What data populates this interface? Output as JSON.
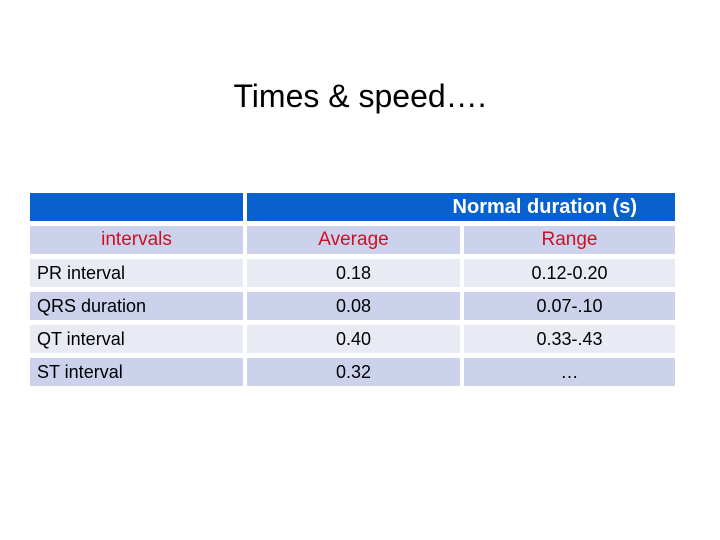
{
  "slide": {
    "title": "Times & speed…."
  },
  "table": {
    "merged_header": "Normal duration (s)",
    "columns": [
      "intervals",
      "Average",
      "Range"
    ],
    "rows": [
      {
        "label": "PR interval",
        "average": "0.18",
        "range": "0.12-0.20"
      },
      {
        "label": "QRS duration",
        "average": "0.08",
        "range": "0.07-.10"
      },
      {
        "label": "QT interval",
        "average": "0.40",
        "range": "0.33-.43"
      },
      {
        "label": "ST interval",
        "average": "0.32",
        "range": "…"
      }
    ]
  },
  "colors": {
    "header_blue": "#0961cd",
    "row_dark": "#ccd1ec",
    "row_light": "#e8eaf4",
    "accent_red": "#cc1122",
    "header_text": "#ffffff",
    "body_text": "#000000"
  }
}
